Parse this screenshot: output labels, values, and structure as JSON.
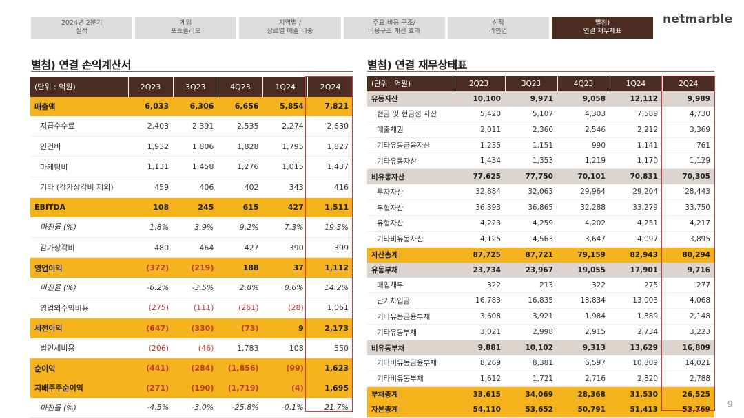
{
  "nav": {
    "tabs": [
      {
        "line1": "2024년 2분기",
        "line2": "실적"
      },
      {
        "line1": "게임",
        "line2": "포트폴리오"
      },
      {
        "line1": "지역별 /",
        "line2": "장르별 매출 비중"
      },
      {
        "line1": "주요 비용 구조/",
        "line2": "비용구조 개선 효과"
      },
      {
        "line1": "신작",
        "line2": "라인업"
      },
      {
        "line1": "별첨)",
        "line2": "연결 재무제표"
      }
    ],
    "active_index": 5,
    "active_color": "#4a2c21"
  },
  "logo": "netmarble",
  "income_statement": {
    "title": "별첨) 연결 손익계산서",
    "headers": [
      "(단위 : 억원)",
      "2Q23",
      "3Q23",
      "4Q23",
      "1Q24",
      "2Q24"
    ],
    "rows": [
      {
        "label": "매출액",
        "values": [
          "6,033",
          "6,306",
          "6,656",
          "5,854",
          "7,821"
        ],
        "style": "hl"
      },
      {
        "label": "지급수수료",
        "values": [
          "2,403",
          "2,391",
          "2,535",
          "2,274",
          "2,630"
        ],
        "style": "sub"
      },
      {
        "label": "인건비",
        "values": [
          "1,932",
          "1,806",
          "1,828",
          "1,795",
          "1,827"
        ],
        "style": "sub"
      },
      {
        "label": "마케팅비",
        "values": [
          "1,131",
          "1,458",
          "1,276",
          "1,015",
          "1,437"
        ],
        "style": "sub"
      },
      {
        "label": "기타 (감가상각비 제외)",
        "values": [
          "459",
          "406",
          "402",
          "343",
          "416"
        ],
        "style": "sub"
      },
      {
        "label": "EBITDA",
        "values": [
          "108",
          "245",
          "615",
          "427",
          "1,511"
        ],
        "style": "hl"
      },
      {
        "label": "마진율 (%)",
        "values": [
          "1.8%",
          "3.9%",
          "9.2%",
          "7.3%",
          "19.3%"
        ],
        "style": "ital"
      },
      {
        "label": "감가상각비",
        "values": [
          "480",
          "464",
          "427",
          "390",
          "399"
        ],
        "style": "sub"
      },
      {
        "label": "영업이익",
        "values": [
          "(372)",
          "(219)",
          "188",
          "37",
          "1,112"
        ],
        "style": "hl"
      },
      {
        "label": "마진율 (%)",
        "values": [
          "-6.2%",
          "-3.5%",
          "2.8%",
          "0.6%",
          "14.2%"
        ],
        "style": "ital"
      },
      {
        "label": "영업외수익비용",
        "values": [
          "(275)",
          "(111)",
          "(261)",
          "(28)",
          "1,061"
        ],
        "style": "sub"
      },
      {
        "label": "세전이익",
        "values": [
          "(647)",
          "(330)",
          "(73)",
          "9",
          "2,173"
        ],
        "style": "hl"
      },
      {
        "label": "법인세비용",
        "values": [
          "(206)",
          "(46)",
          "1,783",
          "108",
          "550"
        ],
        "style": "sub"
      },
      {
        "label": "순이익",
        "values": [
          "(441)",
          "(284)",
          "(1,856)",
          "(99)",
          "1,623"
        ],
        "style": "hl"
      },
      {
        "label": "지배주주순이익",
        "values": [
          "(271)",
          "(190)",
          "(1,719)",
          "(4)",
          "1,695"
        ],
        "style": "hl"
      },
      {
        "label": "마진율 (%)",
        "values": [
          "-4.5%",
          "-3.0%",
          "-25.8%",
          "-0.1%",
          "21.7%"
        ],
        "style": "ital"
      }
    ]
  },
  "balance_sheet": {
    "title": "별첨) 연결 재무상태표",
    "headers": [
      "(단위 : 억원)",
      "2Q23",
      "3Q23",
      "4Q23",
      "1Q24",
      "2Q24"
    ],
    "rows": [
      {
        "label": "유동자산",
        "values": [
          "10,100",
          "9,971",
          "9,058",
          "12,112",
          "9,989"
        ],
        "style": "gray"
      },
      {
        "label": "현금 및 현금성 자산",
        "values": [
          "5,420",
          "5,107",
          "4,303",
          "7,589",
          "4,730"
        ],
        "style": "sub"
      },
      {
        "label": "매출채권",
        "values": [
          "2,011",
          "2,360",
          "2,546",
          "2,212",
          "3,369"
        ],
        "style": "sub"
      },
      {
        "label": "기타유동금융자산",
        "values": [
          "1,235",
          "1,151",
          "990",
          "1,141",
          "761"
        ],
        "style": "sub"
      },
      {
        "label": "기타유동자산",
        "values": [
          "1,434",
          "1,353",
          "1,219",
          "1,170",
          "1,129"
        ],
        "style": "sub"
      },
      {
        "label": "비유동자산",
        "values": [
          "77,625",
          "77,750",
          "70,101",
          "70,831",
          "70,305"
        ],
        "style": "gray"
      },
      {
        "label": "투자자산",
        "values": [
          "32,884",
          "32,063",
          "29,964",
          "29,204",
          "28,443"
        ],
        "style": "sub"
      },
      {
        "label": "무형자산",
        "values": [
          "36,393",
          "36,865",
          "32,288",
          "33,279",
          "33,750"
        ],
        "style": "sub"
      },
      {
        "label": "유형자산",
        "values": [
          "4,223",
          "4,259",
          "4,202",
          "4,251",
          "4,217"
        ],
        "style": "sub"
      },
      {
        "label": "기타비유동자산",
        "values": [
          "4,125",
          "4,563",
          "3,647",
          "4,097",
          "3,895"
        ],
        "style": "sub"
      },
      {
        "label": "자산총계",
        "values": [
          "87,725",
          "87,721",
          "79,159",
          "82,943",
          "80,294"
        ],
        "style": "hl"
      },
      {
        "label": "유동부채",
        "values": [
          "23,734",
          "23,967",
          "19,055",
          "17,901",
          "9,716"
        ],
        "style": "gray"
      },
      {
        "label": "매입채무",
        "values": [
          "322",
          "213",
          "322",
          "275",
          "277"
        ],
        "style": "sub"
      },
      {
        "label": "단기차입금",
        "values": [
          "16,783",
          "16,835",
          "13,834",
          "13,003",
          "4,068"
        ],
        "style": "sub"
      },
      {
        "label": "기타유동금융부채",
        "values": [
          "3,608",
          "3,921",
          "1,984",
          "1,889",
          "2,148"
        ],
        "style": "sub"
      },
      {
        "label": "기타유동부채",
        "values": [
          "3,021",
          "2,998",
          "2,915",
          "2,734",
          "3,223"
        ],
        "style": "sub"
      },
      {
        "label": "비유동부채",
        "values": [
          "9,881",
          "10,102",
          "9,313",
          "13,629",
          "16,809"
        ],
        "style": "gray"
      },
      {
        "label": "기타비유동금융부채",
        "values": [
          "8,269",
          "8,381",
          "6,597",
          "10,809",
          "14,021"
        ],
        "style": "sub"
      },
      {
        "label": "기타비유동부채",
        "values": [
          "1,612",
          "1,721",
          "2,716",
          "2,820",
          "2,788"
        ],
        "style": "sub"
      },
      {
        "label": "부채총계",
        "values": [
          "33,615",
          "34,069",
          "28,368",
          "31,530",
          "26,525"
        ],
        "style": "hl"
      },
      {
        "label": "자본총계",
        "values": [
          "54,110",
          "53,652",
          "50,791",
          "51,413",
          "53,769"
        ],
        "style": "hl"
      }
    ]
  },
  "colors": {
    "header_bg": "#4a2c21",
    "highlight": "#f5b41e",
    "group_gray": "#dcd4cf",
    "negative": "#c0392b",
    "focus_box": "#d9343f"
  },
  "page_number": "9"
}
